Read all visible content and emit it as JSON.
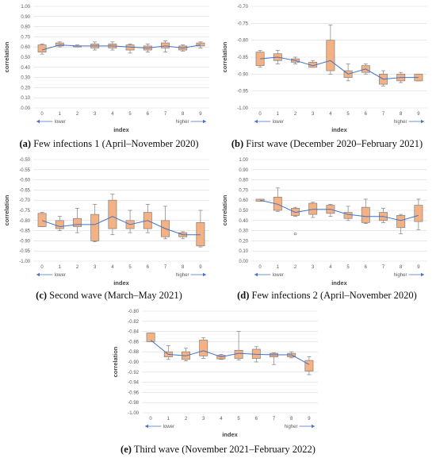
{
  "chart_data": [
    {
      "type": "box",
      "caption_label": "(a)",
      "caption_text": " Few infections 1 (April–November 2020)",
      "xlabel": "index",
      "ylabel": "correlation",
      "lower_label": "lower",
      "higher_label": "higher",
      "ylim": [
        0,
        1
      ],
      "ystep": 0.1,
      "decimals": 2,
      "categories": [
        "0",
        "1",
        "2",
        "3",
        "4",
        "5",
        "6",
        "7",
        "8",
        "9"
      ],
      "boxes": [
        {
          "min": 0.53,
          "q1": 0.55,
          "q3": 0.62,
          "max": 0.63
        },
        {
          "min": 0.6,
          "q1": 0.61,
          "q3": 0.64,
          "max": 0.65
        },
        {
          "min": 0.6,
          "q1": 0.6,
          "q3": 0.61,
          "max": 0.62
        },
        {
          "min": 0.57,
          "q1": 0.59,
          "q3": 0.63,
          "max": 0.65
        },
        {
          "min": 0.57,
          "q1": 0.59,
          "q3": 0.63,
          "max": 0.65
        },
        {
          "min": 0.54,
          "q1": 0.57,
          "q3": 0.62,
          "max": 0.63
        },
        {
          "min": 0.55,
          "q1": 0.57,
          "q3": 0.61,
          "max": 0.63
        },
        {
          "min": 0.55,
          "q1": 0.59,
          "q3": 0.64,
          "max": 0.66
        },
        {
          "min": 0.56,
          "q1": 0.57,
          "q3": 0.61,
          "max": 0.62
        },
        {
          "min": 0.59,
          "q1": 0.61,
          "q3": 0.64,
          "max": 0.65
        }
      ],
      "mean": [
        0.57,
        0.62,
        0.61,
        0.61,
        0.61,
        0.6,
        0.59,
        0.61,
        0.59,
        0.62
      ],
      "outliers": []
    },
    {
      "type": "box",
      "caption_label": "(b)",
      "caption_text": " First wave (December 2020–February 2021)",
      "xlabel": "index",
      "ylabel": "correlation",
      "lower_label": "lower",
      "higher_label": "higher",
      "ylim": [
        -1.0,
        -0.7
      ],
      "ystep": 0.05,
      "decimals": 2,
      "categories": [
        "0",
        "1",
        "2",
        "3",
        "4",
        "5",
        "6",
        "7",
        "8",
        "9"
      ],
      "boxes": [
        {
          "min": -0.88,
          "q1": -0.875,
          "q3": -0.835,
          "max": -0.83
        },
        {
          "min": -0.87,
          "q1": -0.86,
          "q3": -0.84,
          "max": -0.83
        },
        {
          "min": -0.87,
          "q1": -0.865,
          "q3": -0.855,
          "max": -0.85
        },
        {
          "min": -0.88,
          "q1": -0.88,
          "q3": -0.865,
          "max": -0.86
        },
        {
          "min": -0.9,
          "q1": -0.89,
          "q3": -0.8,
          "max": -0.755
        },
        {
          "min": -0.92,
          "q1": -0.91,
          "q3": -0.89,
          "max": -0.87
        },
        {
          "min": -0.9,
          "q1": -0.895,
          "q3": -0.875,
          "max": -0.87
        },
        {
          "min": -0.935,
          "q1": -0.93,
          "q3": -0.9,
          "max": -0.89
        },
        {
          "min": -0.925,
          "q1": -0.92,
          "q3": -0.9,
          "max": -0.895
        },
        {
          "min": -0.92,
          "q1": -0.92,
          "q3": -0.9,
          "max": -0.9
        }
      ],
      "mean": [
        -0.855,
        -0.85,
        -0.86,
        -0.875,
        -0.86,
        -0.9,
        -0.885,
        -0.915,
        -0.91,
        -0.91
      ],
      "outliers": []
    },
    {
      "type": "box",
      "caption_label": "(c)",
      "caption_text": " Second wave (March–May 2021)",
      "xlabel": "index",
      "ylabel": "correlation",
      "lower_label": "lower",
      "higher_label": "higher",
      "ylim": [
        -1.0,
        -0.5
      ],
      "ystep": 0.05,
      "decimals": 2,
      "categories": [
        "0",
        "1",
        "2",
        "3",
        "4",
        "5",
        "6",
        "7",
        "8",
        "9"
      ],
      "boxes": [
        {
          "min": -0.83,
          "q1": -0.83,
          "q3": -0.765,
          "max": -0.76
        },
        {
          "min": -0.85,
          "q1": -0.84,
          "q3": -0.8,
          "max": -0.78
        },
        {
          "min": -0.86,
          "q1": -0.83,
          "q3": -0.79,
          "max": -0.74
        },
        {
          "min": -0.905,
          "q1": -0.9,
          "q3": -0.77,
          "max": -0.72
        },
        {
          "min": -0.87,
          "q1": -0.84,
          "q3": -0.7,
          "max": -0.67
        },
        {
          "min": -0.86,
          "q1": -0.84,
          "q3": -0.8,
          "max": -0.75
        },
        {
          "min": -0.86,
          "q1": -0.84,
          "q3": -0.76,
          "max": -0.72
        },
        {
          "min": -0.89,
          "q1": -0.88,
          "q3": -0.8,
          "max": -0.73
        },
        {
          "min": -0.89,
          "q1": -0.88,
          "q3": -0.86,
          "max": -0.855
        },
        {
          "min": -0.93,
          "q1": -0.925,
          "q3": -0.81,
          "max": -0.75
        }
      ],
      "mean": [
        -0.8,
        -0.83,
        -0.82,
        -0.82,
        -0.78,
        -0.82,
        -0.8,
        -0.84,
        -0.87,
        -0.87
      ],
      "outliers": []
    },
    {
      "type": "box",
      "caption_label": "(d)",
      "caption_text": " Few infections 2 (April–November 2020)",
      "xlabel": "index",
      "ylabel": "correlation",
      "lower_label": "lower",
      "higher_label": "higher",
      "ylim": [
        0,
        1
      ],
      "ystep": 0.1,
      "decimals": 2,
      "categories": [
        "0",
        "1",
        "2",
        "3",
        "4",
        "5",
        "6",
        "7",
        "8",
        "9"
      ],
      "boxes": [
        {
          "min": 0.59,
          "q1": 0.59,
          "q3": 0.61,
          "max": 0.61
        },
        {
          "min": 0.49,
          "q1": 0.5,
          "q3": 0.63,
          "max": 0.72
        },
        {
          "min": 0.44,
          "q1": 0.45,
          "q3": 0.52,
          "max": 0.53
        },
        {
          "min": 0.43,
          "q1": 0.46,
          "q3": 0.57,
          "max": 0.58
        },
        {
          "min": 0.44,
          "q1": 0.47,
          "q3": 0.55,
          "max": 0.56
        },
        {
          "min": 0.4,
          "q1": 0.42,
          "q3": 0.48,
          "max": 0.54
        },
        {
          "min": 0.37,
          "q1": 0.38,
          "q3": 0.53,
          "max": 0.61
        },
        {
          "min": 0.38,
          "q1": 0.4,
          "q3": 0.48,
          "max": 0.52
        },
        {
          "min": 0.27,
          "q1": 0.33,
          "q3": 0.45,
          "max": 0.46
        },
        {
          "min": 0.31,
          "q1": 0.39,
          "q3": 0.55,
          "max": 0.61
        }
      ],
      "mean": [
        0.6,
        0.56,
        0.48,
        0.51,
        0.51,
        0.46,
        0.44,
        0.44,
        0.4,
        0.45
      ],
      "outliers": [
        {
          "index": 2,
          "value": 0.27
        }
      ]
    },
    {
      "type": "box",
      "caption_label": "(e)",
      "caption_text": " Third wave (November 2021–February 2022)",
      "xlabel": "index",
      "ylabel": "correlation",
      "lower_label": "lower",
      "higher_label": "higher",
      "ylim": [
        -1.0,
        -0.8
      ],
      "ystep": 0.02,
      "decimals": 2,
      "categories": [
        "0",
        "1",
        "2",
        "3",
        "4",
        "5",
        "6",
        "7",
        "8",
        "9"
      ],
      "boxes": [
        {
          "min": -0.86,
          "q1": -0.86,
          "q3": -0.843,
          "max": -0.843
        },
        {
          "min": -0.895,
          "q1": -0.89,
          "q3": -0.88,
          "max": -0.868
        },
        {
          "min": -0.898,
          "q1": -0.895,
          "q3": -0.88,
          "max": -0.873
        },
        {
          "min": -0.893,
          "q1": -0.888,
          "q3": -0.857,
          "max": -0.852
        },
        {
          "min": -0.895,
          "q1": -0.894,
          "q3": -0.887,
          "max": -0.885
        },
        {
          "min": -0.896,
          "q1": -0.893,
          "q3": -0.877,
          "max": -0.84
        },
        {
          "min": -0.9,
          "q1": -0.893,
          "q3": -0.875,
          "max": -0.87
        },
        {
          "min": -0.905,
          "q1": -0.89,
          "q3": -0.883,
          "max": -0.882
        },
        {
          "min": -0.892,
          "q1": -0.89,
          "q3": -0.883,
          "max": -0.88
        },
        {
          "min": -0.925,
          "q1": -0.918,
          "q3": -0.897,
          "max": -0.89
        }
      ],
      "mean": [
        -0.857,
        -0.885,
        -0.888,
        -0.878,
        -0.89,
        -0.883,
        -0.885,
        -0.886,
        -0.886,
        -0.905
      ],
      "outliers": []
    }
  ],
  "colors": {
    "box_fill": "#f4b183",
    "box_stroke": "#7f7f7f",
    "mean_line": "#4472c4",
    "grid": "#d9d9d9",
    "arrow": "#4472c4"
  }
}
